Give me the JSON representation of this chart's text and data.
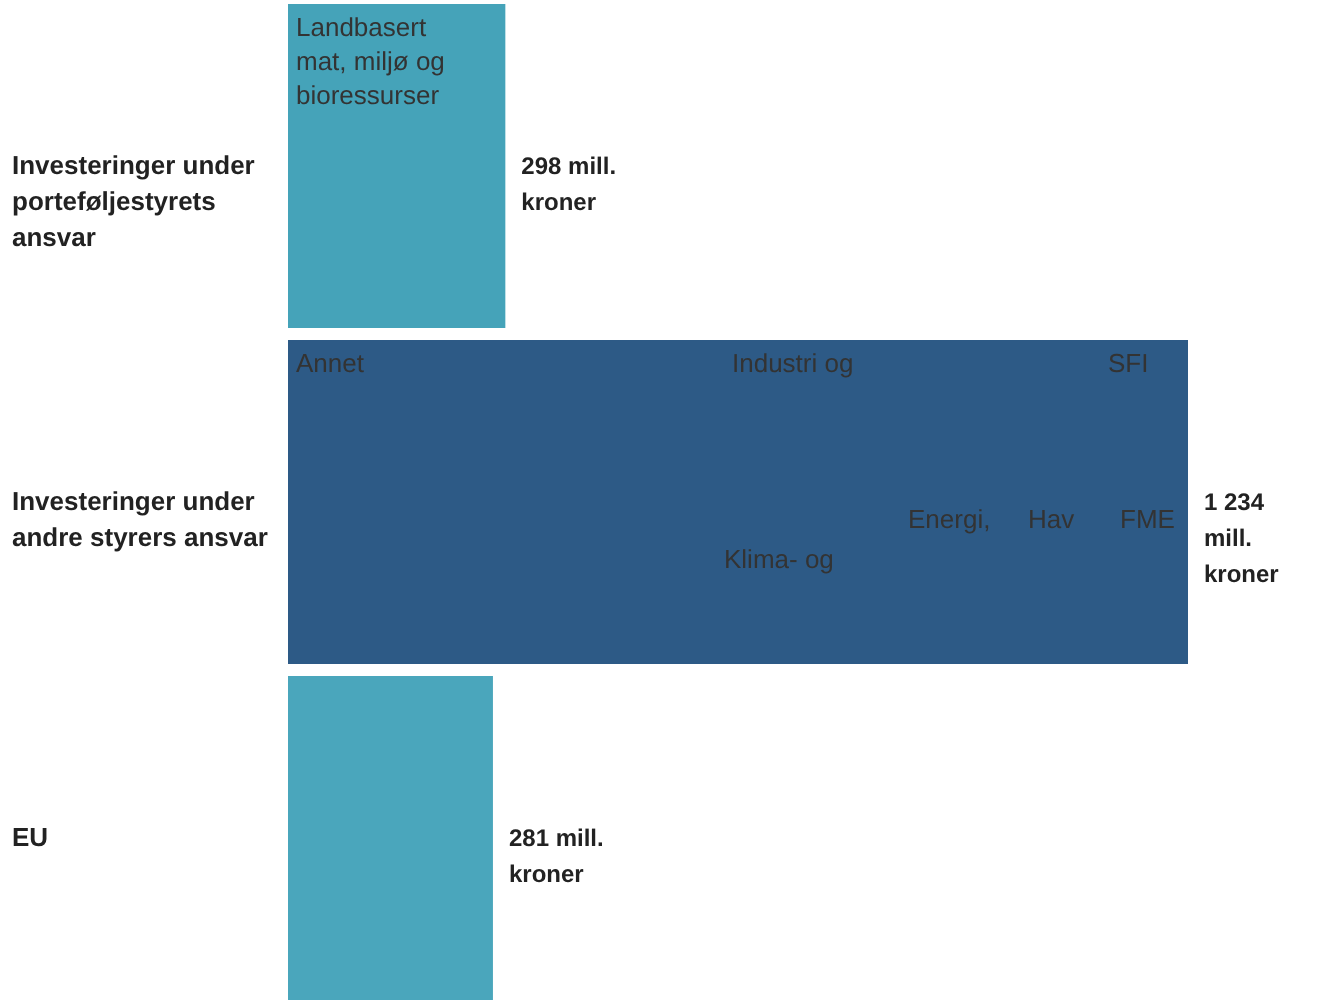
{
  "chart_data": {
    "type": "bar",
    "orientation": "horizontal",
    "categories": [
      "Investeringer under porteføljestyrets ansvar",
      "Investeringer under andre styrers ansvar",
      "EU"
    ],
    "values": [
      298,
      1234,
      281
    ],
    "colors": [
      "#45a3b9",
      "#2d5a86",
      "#4aa6bc"
    ],
    "value_labels": [
      "298 mill. kroner",
      "1 234 mill. kroner",
      "281 mill. kroner"
    ],
    "annotations": [
      "Landbasert mat, miljø og bioressurser",
      "Annet",
      "Industri og",
      "Klima- og",
      "Energi,",
      "Hav",
      "SFI",
      "FME"
    ]
  }
}
